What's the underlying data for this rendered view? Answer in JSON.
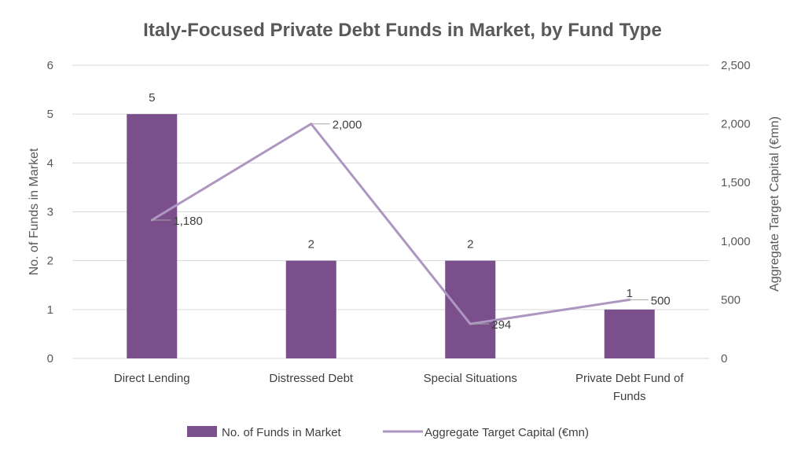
{
  "chart_data": {
    "type": "bar",
    "title": "Italy-Focused Private Debt Funds in Market, by Fund Type",
    "categories": [
      [
        "Direct Lending"
      ],
      [
        "Distressed Debt"
      ],
      [
        "Special Situations"
      ],
      [
        "Private Debt Fund of",
        "Funds"
      ]
    ],
    "series": [
      {
        "name": "No. of Funds in Market",
        "type": "bar",
        "axis": "left",
        "color": "#7b4f8c",
        "values": [
          5,
          2,
          2,
          1
        ],
        "labels": [
          "5",
          "2",
          "2",
          "1"
        ]
      },
      {
        "name": "Aggregate Target Capital (€mn)",
        "type": "line",
        "axis": "right",
        "color": "#ad97c1",
        "values": [
          1180,
          2000,
          294,
          500
        ],
        "labels": [
          "1,180",
          "2,000",
          "294",
          "500"
        ]
      }
    ],
    "y_left": {
      "label": "No. of Funds in Market",
      "min": 0,
      "max": 6,
      "ticks": [
        "0",
        "1",
        "2",
        "3",
        "4",
        "5",
        "6"
      ]
    },
    "y_right": {
      "label": "Aggregate Target Capital (€mn)",
      "min": 0,
      "max": 2500,
      "ticks": [
        "0",
        "500",
        "1,000",
        "1,500",
        "2,000",
        "2,500"
      ]
    },
    "grid": true,
    "legend": "bottom"
  }
}
